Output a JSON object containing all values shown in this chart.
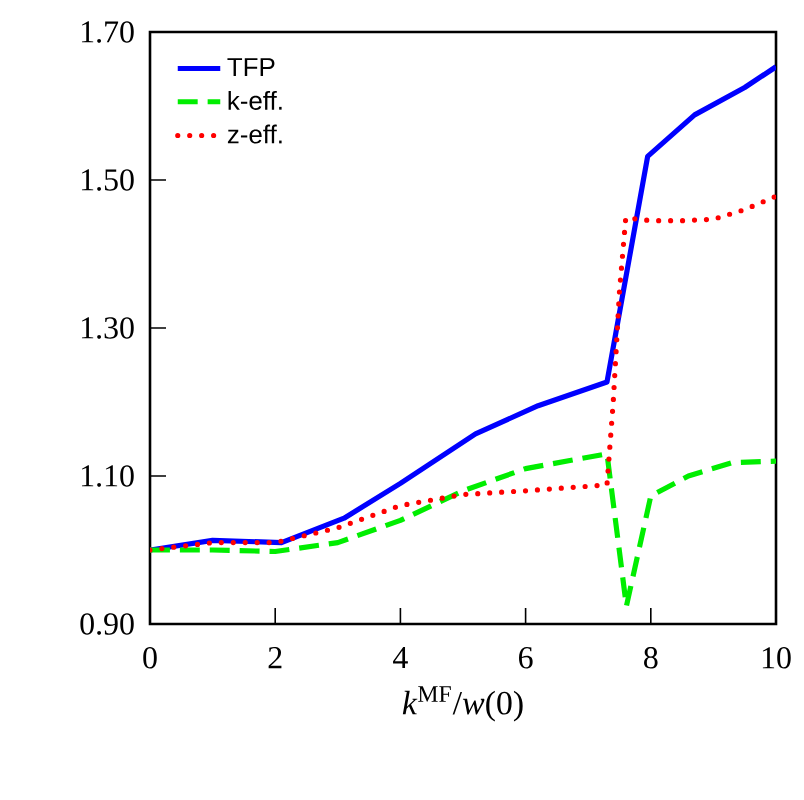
{
  "chart_data": {
    "type": "line",
    "xlabel": "*k*$^{MF}$/*w*(0)",
    "xlim": [
      0,
      10
    ],
    "xticks": [
      0,
      2,
      4,
      6,
      8,
      10
    ],
    "ylim": [
      0.9,
      1.7
    ],
    "yticks": [
      {
        "value": 0.9,
        "label": "0.90"
      },
      {
        "value": 1.1,
        "label": "1.10"
      },
      {
        "value": 1.3,
        "label": "1.30"
      },
      {
        "value": 1.5,
        "label": "1.50"
      },
      {
        "value": 1.7,
        "label": "1.70"
      }
    ],
    "legend": "top left",
    "grid": false,
    "series": [
      {
        "name": "TFP",
        "color": "#0000ff",
        "line_style": "solid",
        "x": [
          0,
          1,
          2.1,
          3.1,
          4,
          5.2,
          6.2,
          7.3,
          7.95,
          8.7,
          9.5,
          10
        ],
        "values": [
          1.0,
          1.013,
          1.01,
          1.043,
          1.09,
          1.157,
          1.195,
          1.227,
          1.532,
          1.588,
          1.625,
          1.653
        ]
      },
      {
        "name": "k-eff.",
        "color": "#00ee00",
        "line_style": "dashed",
        "x": [
          0,
          1,
          2,
          3,
          4,
          5,
          6,
          7.3,
          7.61,
          8,
          8.6,
          9.3,
          10
        ],
        "values": [
          1.0,
          1.0,
          0.998,
          1.01,
          1.04,
          1.08,
          1.11,
          1.13,
          0.924,
          1.073,
          1.1,
          1.118,
          1.12
        ]
      },
      {
        "name": "z-eff.",
        "color": "#ff0000",
        "line_style": "dotted",
        "x": [
          0,
          1,
          2,
          3,
          4,
          5,
          6,
          7.3,
          7.4,
          7.5,
          7.6,
          8,
          8.5,
          9,
          9.5,
          10
        ],
        "values": [
          1.0,
          1.01,
          1.01,
          1.03,
          1.06,
          1.075,
          1.08,
          1.088,
          1.2,
          1.35,
          1.449,
          1.445,
          1.445,
          1.447,
          1.46,
          1.478
        ]
      }
    ]
  }
}
